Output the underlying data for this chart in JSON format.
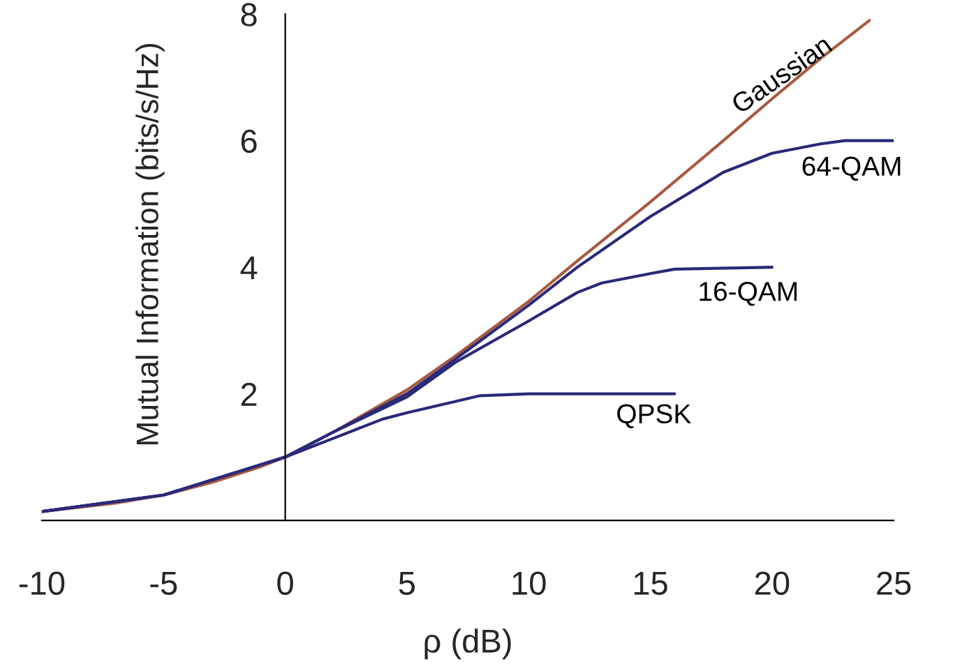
{
  "chart_data": {
    "type": "line",
    "xlabel": "ρ (dB)",
    "ylabel": "Mutual Information (bits/s/Hz)",
    "xlim": [
      -10,
      25
    ],
    "xticks": [
      -10,
      -5,
      0,
      5,
      10,
      15,
      20,
      25
    ],
    "ylim": [
      0,
      8
    ],
    "yticks": [
      2,
      4,
      6,
      8
    ],
    "grid": false,
    "legend": false,
    "series": [
      {
        "name": "Gaussian",
        "color": "#a85a40",
        "x": [
          -10,
          -7,
          -5,
          -3,
          -1,
          0,
          2,
          5,
          7,
          10,
          12,
          15,
          18,
          20,
          22,
          24
        ],
        "values": [
          0.14,
          0.27,
          0.4,
          0.6,
          0.85,
          1.0,
          1.4,
          2.06,
          2.6,
          3.46,
          4.1,
          5.03,
          6.0,
          6.66,
          7.3,
          7.9
        ]
      },
      {
        "name": "64-QAM",
        "color": "#2a2a7a",
        "x": [
          -10,
          -5,
          0,
          2,
          5,
          7,
          10,
          12,
          15,
          18,
          20,
          22,
          23,
          25
        ],
        "values": [
          0.14,
          0.4,
          1.0,
          1.4,
          2.0,
          2.55,
          3.4,
          4.0,
          4.8,
          5.5,
          5.8,
          5.95,
          6.0,
          6.0
        ]
      },
      {
        "name": "16-QAM",
        "color": "#2a2a7a",
        "x": [
          -10,
          -5,
          0,
          2,
          5,
          7,
          10,
          12,
          13,
          15,
          16,
          20
        ],
        "values": [
          0.14,
          0.4,
          1.0,
          1.4,
          1.95,
          2.5,
          3.15,
          3.6,
          3.75,
          3.9,
          3.97,
          4.0
        ]
      },
      {
        "name": "QPSK",
        "color": "#2a2a7a",
        "x": [
          -10,
          -5,
          0,
          2,
          4,
          5,
          7,
          8,
          10,
          16
        ],
        "values": [
          0.14,
          0.4,
          1.0,
          1.3,
          1.6,
          1.7,
          1.88,
          1.97,
          2.0,
          2.0
        ]
      }
    ]
  }
}
